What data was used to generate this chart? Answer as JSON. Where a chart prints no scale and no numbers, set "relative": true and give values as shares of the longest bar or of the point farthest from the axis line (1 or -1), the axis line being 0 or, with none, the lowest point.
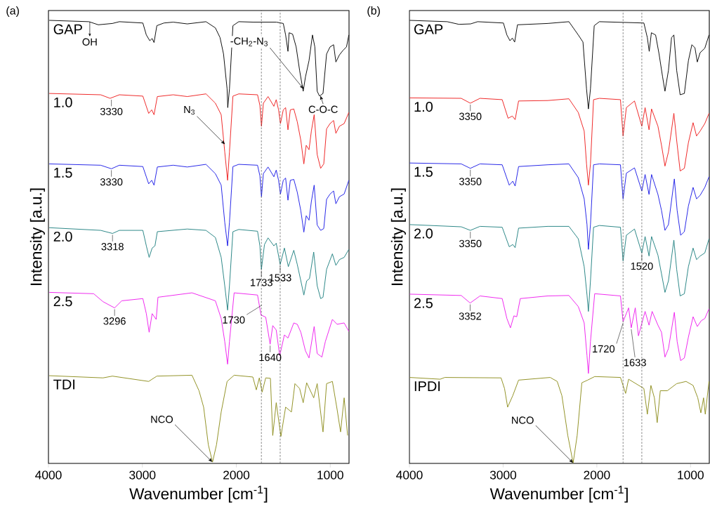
{
  "chart_data": [
    {
      "type": "line",
      "relative": true,
      "title": "(a)",
      "xlabel": "Wavenumber [cm$^{-1}$]",
      "ylabel": "Intensity [a.u.]",
      "xlim": [
        4000,
        800
      ],
      "xticks": [
        4000,
        3000,
        2000,
        1000
      ],
      "series": [
        {
          "name": "GAP",
          "color": "#000000",
          "x": [
            3992,
            3569,
            3469,
            3319,
            3245,
            2995,
            2958,
            2921,
            2896,
            2876,
            2846,
            2771,
            2672,
            2522,
            2323,
            2223,
            2173,
            2136,
            2098,
            2091,
            2073,
            2036,
            1974,
            1824,
            1575,
            1500,
            1475,
            1450,
            1438,
            1401,
            1363,
            1326,
            1288,
            1264,
            1226,
            1189,
            1164,
            1139,
            1114,
            1077,
            1039,
            1002,
            964,
            940,
            902,
            865,
            827,
            802
          ],
          "values": [
            1.0,
            0.997,
            0.99,
            0.993,
            0.997,
            0.994,
            0.967,
            0.954,
            0.959,
            0.95,
            0.988,
            0.994,
            0.996,
            0.992,
            0.997,
            0.983,
            0.961,
            0.924,
            0.845,
            0.803,
            0.845,
            0.988,
            0.997,
            0.996,
            0.996,
            0.993,
            0.967,
            0.93,
            0.972,
            0.969,
            0.94,
            0.887,
            0.84,
            0.872,
            0.909,
            0.967,
            0.94,
            0.84,
            0.829,
            0.835,
            0.924,
            0.94,
            0.945,
            0.906,
            0.922,
            0.932,
            0.94,
            0.967
          ]
        },
        {
          "name": "1.0",
          "color": "#ee1c1c",
          "x": [
            3992,
            3444,
            3344,
            3245,
            2995,
            2933,
            2901,
            2876,
            2841,
            2672,
            2522,
            2323,
            2223,
            2161,
            2123,
            2093,
            2073,
            2036,
            1974,
            1774,
            1749,
            1732,
            1712,
            1662,
            1600,
            1575,
            1550,
            1530,
            1500,
            1475,
            1450,
            1425,
            1388,
            1351,
            1313,
            1281,
            1256,
            1226,
            1201,
            1171,
            1139,
            1102,
            1069,
            1039,
            1002,
            964,
            940,
            902,
            852,
            802
          ],
          "values": [
            0.835,
            0.832,
            0.824,
            0.832,
            0.829,
            0.79,
            0.798,
            0.787,
            0.828,
            0.832,
            0.828,
            0.834,
            0.813,
            0.787,
            0.703,
            0.639,
            0.703,
            0.829,
            0.834,
            0.832,
            0.808,
            0.761,
            0.813,
            0.828,
            0.806,
            0.821,
            0.798,
            0.767,
            0.798,
            0.803,
            0.753,
            0.798,
            0.8,
            0.771,
            0.729,
            0.676,
            0.718,
            0.708,
            0.75,
            0.787,
            0.697,
            0.666,
            0.676,
            0.755,
            0.767,
            0.774,
            0.745,
            0.761,
            0.767,
            0.792
          ]
        },
        {
          "name": "1.5",
          "color": "#1a1ae6",
          "x": [
            3992,
            3444,
            3330,
            3245,
            2995,
            2933,
            2901,
            2876,
            2841,
            2672,
            2522,
            2323,
            2223,
            2161,
            2123,
            2093,
            2073,
            2036,
            1974,
            1774,
            1749,
            1732,
            1712,
            1662,
            1600,
            1575,
            1550,
            1530,
            1500,
            1475,
            1450,
            1425,
            1388,
            1351,
            1313,
            1281,
            1256,
            1226,
            1201,
            1171,
            1139,
            1102,
            1069,
            1039,
            1002,
            964,
            940,
            902,
            852,
            802
          ],
          "values": [
            0.676,
            0.673,
            0.665,
            0.673,
            0.67,
            0.631,
            0.639,
            0.628,
            0.669,
            0.673,
            0.669,
            0.675,
            0.654,
            0.628,
            0.544,
            0.491,
            0.544,
            0.67,
            0.675,
            0.673,
            0.649,
            0.602,
            0.654,
            0.669,
            0.647,
            0.662,
            0.639,
            0.608,
            0.639,
            0.644,
            0.594,
            0.639,
            0.641,
            0.612,
            0.57,
            0.522,
            0.559,
            0.549,
            0.591,
            0.628,
            0.538,
            0.526,
            0.53,
            0.596,
            0.608,
            0.615,
            0.586,
            0.602,
            0.608,
            0.639
          ]
        },
        {
          "name": "2.0",
          "color": "#1f8080",
          "x": [
            3992,
            3444,
            3318,
            3245,
            2995,
            2958,
            2928,
            2896,
            2866,
            2841,
            2522,
            2323,
            2223,
            2161,
            2123,
            2093,
            2073,
            2036,
            1974,
            1774,
            1749,
            1733,
            1700,
            1662,
            1600,
            1575,
            1533,
            1488,
            1446,
            1388,
            1351,
            1313,
            1281,
            1251,
            1221,
            1176,
            1139,
            1102,
            1077,
            1039,
            977,
            940,
            902,
            852,
            802
          ],
          "values": [
            0.532,
            0.526,
            0.519,
            0.526,
            0.526,
            0.491,
            0.465,
            0.486,
            0.491,
            0.523,
            0.529,
            0.526,
            0.51,
            0.465,
            0.401,
            0.346,
            0.401,
            0.523,
            0.528,
            0.524,
            0.491,
            0.438,
            0.494,
            0.509,
            0.491,
            0.497,
            0.449,
            0.486,
            0.444,
            0.481,
            0.449,
            0.412,
            0.38,
            0.412,
            0.417,
            0.477,
            0.401,
            0.372,
            0.375,
            0.438,
            0.473,
            0.447,
            0.46,
            0.465,
            0.483
          ]
        },
        {
          "name": "2.5",
          "color": "#ee1cee",
          "x": [
            3992,
            3519,
            3419,
            3296,
            3220,
            2995,
            2958,
            2928,
            2896,
            2853,
            2834,
            2472,
            2223,
            2161,
            2123,
            2093,
            2073,
            2023,
            1774,
            1737,
            1687,
            1640,
            1612,
            1575,
            1538,
            1488,
            1450,
            1388,
            1351,
            1313,
            1264,
            1226,
            1171,
            1139,
            1089,
            1052,
            977,
            927,
            852,
            802
          ],
          "values": [
            0.386,
            0.383,
            0.365,
            0.351,
            0.367,
            0.372,
            0.338,
            0.296,
            0.338,
            0.325,
            0.375,
            0.385,
            0.367,
            0.327,
            0.275,
            0.224,
            0.275,
            0.385,
            0.38,
            0.335,
            0.33,
            0.269,
            0.311,
            0.301,
            0.243,
            0.29,
            0.283,
            0.317,
            0.314,
            0.296,
            0.254,
            0.238,
            0.309,
            0.248,
            0.24,
            0.275,
            0.325,
            0.314,
            0.317,
            0.298
          ]
        },
        {
          "name": "TDI",
          "color": "#8c8c1a",
          "x": [
            3992,
            3419,
            3319,
            2933,
            2846,
            2472,
            2397,
            2348,
            2298,
            2253,
            2211,
            2161,
            2098,
            2023,
            1824,
            1787,
            1755,
            1725,
            1687,
            1637,
            1612,
            1575,
            1525,
            1475,
            1413,
            1376,
            1326,
            1288,
            1251,
            1176,
            1139,
            1077,
            1039,
            977,
            927,
            890,
            852,
            815
          ],
          "values": [
            0.198,
            0.193,
            0.197,
            0.185,
            0.197,
            0.199,
            0.164,
            0.127,
            0.042,
            0.003,
            0.042,
            0.116,
            0.185,
            0.199,
            0.195,
            0.166,
            0.193,
            0.161,
            0.193,
            0.192,
            0.063,
            0.137,
            0.061,
            0.127,
            0.116,
            0.18,
            0.169,
            0.137,
            0.182,
            0.148,
            0.18,
            0.071,
            0.18,
            0.185,
            0.122,
            0.071,
            0.148,
            0.063
          ]
        }
      ],
      "ref_lines": [
        {
          "axis": "x",
          "value": 1733,
          "line_style": "dashed"
        },
        {
          "axis": "x",
          "value": 1533,
          "line_style": "dashed"
        }
      ],
      "annotations": [
        {
          "text": "OH",
          "x": 3560,
          "y": 0.997
        },
        {
          "text": "N$_{3}$",
          "x": 2120,
          "y": 0.72
        },
        {
          "text": "-CH$_{2}$-N$_{3}$",
          "x": 1283,
          "y": 0.845
        },
        {
          "text": "C-O-C",
          "x": 1105,
          "y": 0.83
        },
        {
          "text": "3330",
          "x": 3330,
          "y": 0.824
        },
        {
          "text": "3330",
          "x": 3330,
          "y": 0.665
        },
        {
          "text": "3318",
          "x": 3318,
          "y": 0.519
        },
        {
          "text": "3296",
          "x": 3296,
          "y": 0.351
        },
        {
          "text": "1733",
          "x": 1733,
          "y": 0.438
        },
        {
          "text": "1533",
          "x": 1533,
          "y": 0.449
        },
        {
          "text": "1730",
          "x": 1730,
          "y": 0.36
        },
        {
          "text": "1640",
          "x": 1640,
          "y": 0.269
        },
        {
          "text": "NCO",
          "x": 2255,
          "y": 0.003
        }
      ]
    },
    {
      "type": "line",
      "relative": true,
      "title": "(b)",
      "xlabel": "Wavenumber [cm$^{-1}$]",
      "ylabel": "Intensity [a.u.]",
      "xlim": [
        4000,
        800
      ],
      "xticks": [
        4000,
        3000,
        2000,
        1000
      ],
      "series": [
        {
          "name": "GAP",
          "color": "#000000",
          "x": [
            3997,
            3597,
            3472,
            3347,
            3272,
            2997,
            2960,
            2927,
            2902,
            2877,
            2847,
            2523,
            2298,
            2198,
            2148,
            2110,
            2090,
            2068,
            2028,
            1973,
            1498,
            1461,
            1441,
            1418,
            1373,
            1336,
            1298,
            1273,
            1236,
            1203,
            1178,
            1148,
            1111,
            1066,
            1023,
            986,
            953,
            928,
            898,
            848,
            803
          ],
          "values": [
            1.0,
            0.997,
            0.991,
            0.992,
            0.997,
            0.994,
            0.967,
            0.954,
            0.96,
            0.951,
            0.99,
            0.993,
            0.997,
            0.967,
            0.951,
            0.845,
            0.8,
            0.845,
            0.988,
            0.997,
            0.994,
            0.961,
            0.93,
            0.972,
            0.967,
            0.924,
            0.872,
            0.84,
            0.887,
            0.961,
            0.967,
            0.887,
            0.832,
            0.835,
            0.909,
            0.945,
            0.938,
            0.906,
            0.927,
            0.937,
            0.967
          ]
        },
        {
          "name": "1.0",
          "color": "#ee1c1c",
          "x": [
            3997,
            3447,
            3350,
            3247,
            3010,
            2947,
            2902,
            2872,
            2835,
            2523,
            2298,
            2198,
            2135,
            2110,
            2090,
            2068,
            2035,
            1973,
            1748,
            1720,
            1685,
            1598,
            1520,
            1485,
            1443,
            1416,
            1348,
            1310,
            1273,
            1236,
            1178,
            1148,
            1111,
            1066,
            1023,
            973,
            936,
            898,
            848,
            803
          ],
          "values": [
            0.825,
            0.824,
            0.813,
            0.824,
            0.821,
            0.779,
            0.784,
            0.776,
            0.818,
            0.819,
            0.823,
            0.792,
            0.75,
            0.676,
            0.628,
            0.676,
            0.821,
            0.824,
            0.821,
            0.739,
            0.803,
            0.818,
            0.761,
            0.803,
            0.753,
            0.8,
            0.761,
            0.718,
            0.671,
            0.703,
            0.79,
            0.729,
            0.66,
            0.666,
            0.724,
            0.769,
            0.739,
            0.75,
            0.767,
            0.79
          ]
        },
        {
          "name": "1.5",
          "color": "#1a1ae6",
          "x": [
            3997,
            3447,
            3350,
            3247,
            3010,
            2935,
            2897,
            2872,
            2835,
            2523,
            2298,
            2198,
            2135,
            2105,
            2090,
            2068,
            2035,
            1973,
            1748,
            1720,
            1685,
            1598,
            1520,
            1485,
            1443,
            1416,
            1348,
            1310,
            1273,
            1236,
            1173,
            1143,
            1106,
            1066,
            1023,
            973,
            936,
            898,
            848,
            803
          ],
          "values": [
            0.678,
            0.676,
            0.666,
            0.676,
            0.674,
            0.628,
            0.637,
            0.626,
            0.67,
            0.674,
            0.676,
            0.645,
            0.597,
            0.539,
            0.483,
            0.539,
            0.674,
            0.676,
            0.674,
            0.597,
            0.655,
            0.667,
            0.615,
            0.652,
            0.607,
            0.652,
            0.607,
            0.571,
            0.526,
            0.539,
            0.642,
            0.571,
            0.515,
            0.523,
            0.581,
            0.623,
            0.597,
            0.605,
            0.623,
            0.647
          ]
        },
        {
          "name": "2.0",
          "color": "#1f8080",
          "x": [
            3997,
            3447,
            3350,
            3247,
            3010,
            2935,
            2897,
            2872,
            2835,
            2523,
            2298,
            2198,
            2135,
            2105,
            2090,
            2068,
            2035,
            1973,
            1748,
            1720,
            1685,
            1598,
            1520,
            1485,
            1443,
            1416,
            1348,
            1310,
            1273,
            1236,
            1178,
            1148,
            1111,
            1066,
            1023,
            973,
            936,
            898,
            848,
            803
          ],
          "values": [
            0.539,
            0.534,
            0.526,
            0.535,
            0.533,
            0.489,
            0.494,
            0.487,
            0.531,
            0.535,
            0.535,
            0.507,
            0.444,
            0.38,
            0.343,
            0.412,
            0.533,
            0.537,
            0.533,
            0.457,
            0.515,
            0.529,
            0.475,
            0.512,
            0.468,
            0.512,
            0.47,
            0.428,
            0.386,
            0.412,
            0.504,
            0.438,
            0.378,
            0.383,
            0.444,
            0.486,
            0.46,
            0.468,
            0.475,
            0.507
          ]
        },
        {
          "name": "2.5",
          "color": "#ee1cee",
          "x": [
            3997,
            3447,
            3352,
            3247,
            3010,
            2960,
            2922,
            2885,
            2855,
            2817,
            2523,
            2298,
            2198,
            2135,
            2105,
            2090,
            2068,
            2023,
            1748,
            1720,
            1661,
            1633,
            1590,
            1556,
            1485,
            1443,
            1410,
            1348,
            1310,
            1273,
            1236,
            1173,
            1143,
            1106,
            1066,
            1023,
            973,
            928,
            886,
            848,
            803
          ],
          "values": [
            0.382,
            0.379,
            0.362,
            0.378,
            0.372,
            0.327,
            0.306,
            0.333,
            0.331,
            0.372,
            0.378,
            0.379,
            0.354,
            0.317,
            0.243,
            0.203,
            0.275,
            0.383,
            0.378,
            0.32,
            0.351,
            0.306,
            0.351,
            0.288,
            0.343,
            0.312,
            0.343,
            0.312,
            0.296,
            0.24,
            0.259,
            0.341,
            0.275,
            0.232,
            0.238,
            0.285,
            0.331,
            0.309,
            0.322,
            0.327,
            0.349
          ]
        },
        {
          "name": "IPDI",
          "color": "#8c8c1a",
          "x": [
            3997,
            3672,
            3622,
            3022,
            2985,
            2952,
            2897,
            2835,
            2498,
            2423,
            2373,
            2310,
            2253,
            2210,
            2160,
            2098,
            2023,
            1748,
            1693,
            1661,
            1498,
            1461,
            1423,
            1386,
            1356,
            1323,
            1248,
            1148,
            1048,
            973,
            923,
            890,
            861,
            843,
            803
          ],
          "values": [
            0.194,
            0.19,
            0.194,
            0.193,
            0.169,
            0.127,
            0.153,
            0.188,
            0.194,
            0.185,
            0.153,
            0.063,
            0.001,
            0.063,
            0.182,
            0.188,
            0.196,
            0.194,
            0.158,
            0.19,
            0.169,
            0.111,
            0.176,
            0.148,
            0.092,
            0.164,
            0.164,
            0.18,
            0.185,
            0.176,
            0.148,
            0.114,
            0.148,
            0.111,
            0.185
          ]
        }
      ],
      "ref_lines": [
        {
          "axis": "x",
          "value": 1720,
          "line_style": "dashed"
        },
        {
          "axis": "x",
          "value": 1520,
          "line_style": "dashed"
        }
      ],
      "annotations": [
        {
          "text": "3350",
          "x": 3350,
          "y": 0.813
        },
        {
          "text": "3350",
          "x": 3350,
          "y": 0.666
        },
        {
          "text": "3350",
          "x": 3350,
          "y": 0.526
        },
        {
          "text": "3352",
          "x": 3352,
          "y": 0.362
        },
        {
          "text": "1720",
          "x": 1720,
          "y": 0.32
        },
        {
          "text": "1520",
          "x": 1520,
          "y": 0.475
        },
        {
          "text": "1633",
          "x": 1633,
          "y": 0.306
        },
        {
          "text": "NCO",
          "x": 2253,
          "y": 0.001
        }
      ]
    }
  ]
}
